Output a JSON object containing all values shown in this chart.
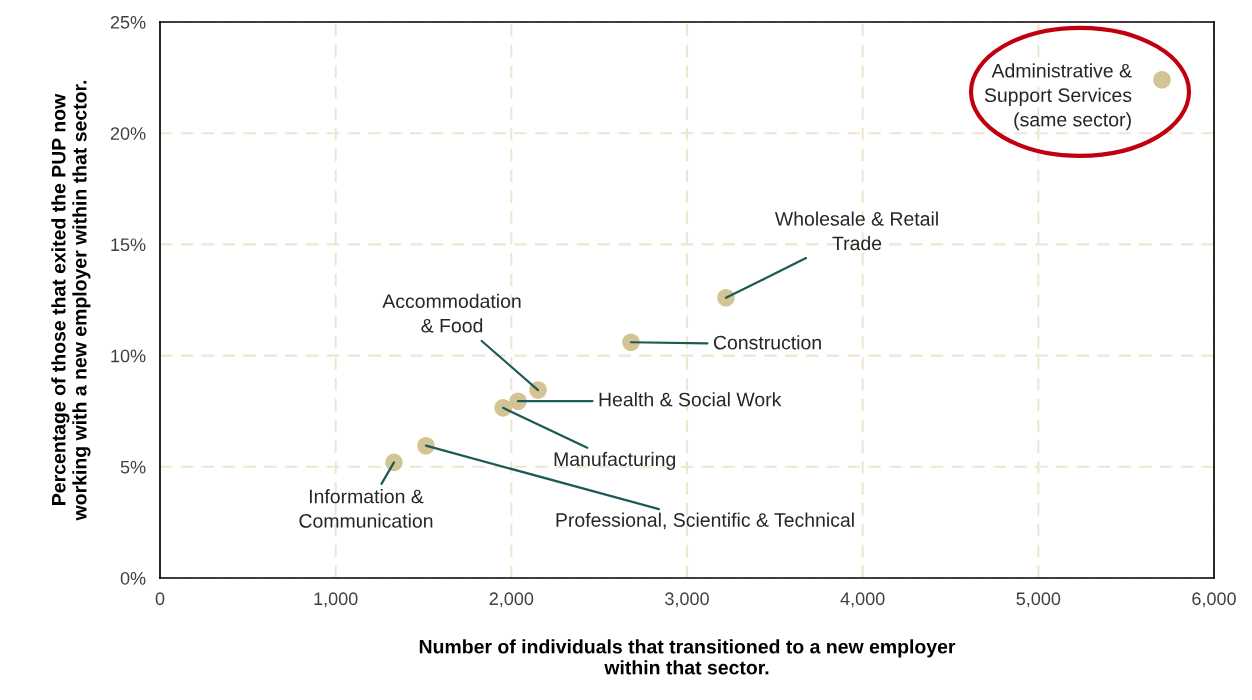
{
  "chart_data": {
    "type": "scatter",
    "xlabel": "Number of individuals that transitioned to a new employer\nwithin that sector.",
    "ylabel": "Percentage of those that exited the PUP now\nworking with a new employer within that sector.",
    "x": [
      5704,
      3222,
      2681,
      2152,
      2038,
      1953,
      1514,
      1332
    ],
    "series": [
      {
        "color": "#d4c495",
        "values": [
          22.4,
          12.6,
          10.6,
          8.45,
          7.95,
          7.65,
          5.95,
          5.2
        ]
      }
    ],
    "xlim": [
      0,
      6000
    ],
    "xticks": [
      {
        "value": 0,
        "label": "0"
      },
      {
        "value": 1000,
        "label": "1,000"
      },
      {
        "value": 2000,
        "label": "2,000"
      },
      {
        "value": 3000,
        "label": "3,000"
      },
      {
        "value": 4000,
        "label": "4,000"
      },
      {
        "value": 5000,
        "label": "5,000"
      },
      {
        "value": 6000,
        "label": "6,000"
      }
    ],
    "ylim": [
      0,
      25
    ],
    "yticks": [
      {
        "value": 0,
        "label": "0%"
      },
      {
        "value": 5,
        "label": "5%"
      },
      {
        "value": 10,
        "label": "10%"
      },
      {
        "value": 15,
        "label": "15%"
      },
      {
        "value": 20,
        "label": "20%"
      },
      {
        "value": 25,
        "label": "25%"
      }
    ],
    "grid": true,
    "marker": "circle",
    "annotations": [
      {
        "text": "Administrative &\nSupport Services\n(same sector)",
        "x": 5704,
        "y": 22.4
      },
      {
        "text": "Wholesale & Retail\nTrade",
        "x": 3222,
        "y": 12.6
      },
      {
        "text": "Construction",
        "x": 2681,
        "y": 10.6
      },
      {
        "text": "Accommodation\n& Food",
        "x": 2152,
        "y": 8.45
      },
      {
        "text": "Health & Social Work",
        "x": 2038,
        "y": 7.95
      },
      {
        "text": "Manufacturing",
        "x": 1953,
        "y": 7.65
      },
      {
        "text": "Professional, Scientific & Technical",
        "x": 1514,
        "y": 5.95
      },
      {
        "text": "Information &\nCommunication",
        "x": 1332,
        "y": 5.2
      }
    ]
  }
}
